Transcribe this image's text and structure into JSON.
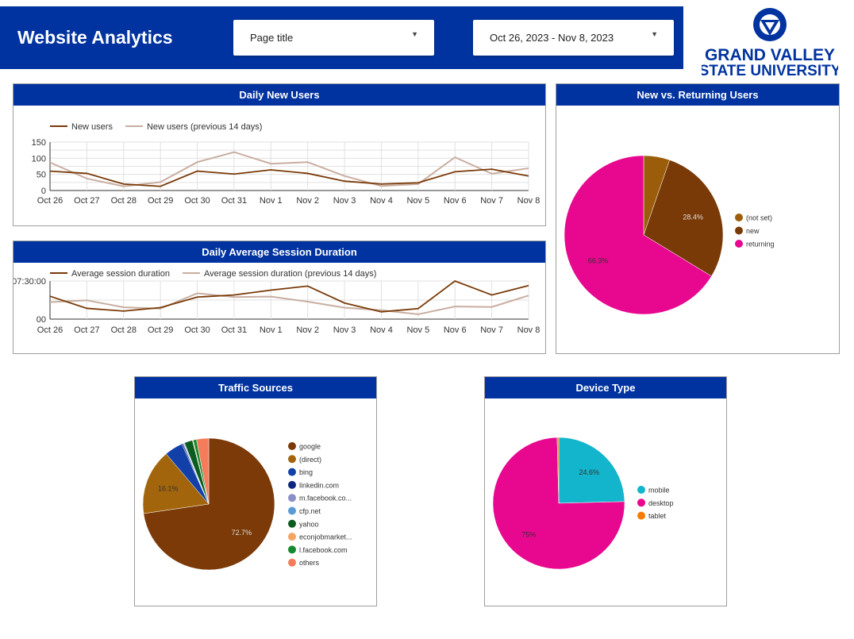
{
  "header": {
    "title": "Website Analytics",
    "filter_dimension": "Page title",
    "date_range": "Oct 26, 2023 - Nov 8, 2023",
    "logo_text": [
      "GRAND VALLEY",
      "STATE UNIVERSITY"
    ]
  },
  "colors": {
    "brand": "#0033a0",
    "current": "#7a3a08",
    "previous": "#c8aea0"
  },
  "panels": {
    "new_users": "Daily New Users",
    "session": "Daily Average Session Duration",
    "nvr": "New vs. Returning Users",
    "traffic": "Traffic Sources",
    "device": "Device Type"
  },
  "chart_data": [
    {
      "type": "line",
      "categories": [
        "Oct 26",
        "Oct 27",
        "Oct 28",
        "Oct 29",
        "Oct 30",
        "Oct 31",
        "Nov 1",
        "Nov 2",
        "Nov 3",
        "Nov 4",
        "Nov 5",
        "Nov 6",
        "Nov 7",
        "Nov 8"
      ],
      "yticks": [
        "0",
        "50",
        "100",
        "150"
      ],
      "ylim": [
        0,
        150
      ],
      "grid": true,
      "legend": "top-left",
      "series": [
        {
          "name": "New users",
          "values": [
            60,
            53,
            20,
            13,
            60,
            51,
            64,
            53,
            29,
            20,
            24,
            58,
            66,
            45
          ]
        },
        {
          "name": "New users (previous 14 days)",
          "values": [
            87,
            37,
            13,
            26,
            88,
            119,
            83,
            88,
            45,
            14,
            20,
            103,
            52,
            69
          ]
        }
      ]
    },
    {
      "type": "line",
      "categories": [
        "Oct 26",
        "Oct 27",
        "Oct 28",
        "Oct 29",
        "Oct 30",
        "Oct 31",
        "Nov 1",
        "Nov 2",
        "Nov 3",
        "Nov 4",
        "Nov 5",
        "Nov 6",
        "Nov 7",
        "Nov 8"
      ],
      "yticks": [
        "00",
        "07:30:00"
      ],
      "ylim": [
        "00:00:00",
        "07:30:00"
      ],
      "grid": true,
      "legend": "top-left",
      "series": [
        {
          "name": "Average session duration",
          "values": [
            "04:30:00",
            "02:07:00",
            "01:35:00",
            "02:16:00",
            "04:20:00",
            "04:45:00",
            "05:42:00",
            "06:30:00",
            "03:10:00",
            "01:26:00",
            "02:04:00",
            "07:30:00",
            "04:45:00",
            "06:36:00"
          ]
        },
        {
          "name": "Average session duration (previous 14 days)",
          "values": [
            "03:20:00",
            "03:42:00",
            "02:20:00",
            "02:04:00",
            "05:05:00",
            "04:20:00",
            "04:26:00",
            "03:26:00",
            "02:15:00",
            "01:45:00",
            "00:57:00",
            "02:29:00",
            "02:23:00",
            "04:38:00"
          ]
        }
      ]
    },
    {
      "type": "pie",
      "legend": "right",
      "slices": [
        {
          "name": "(not set)",
          "value": 5.3,
          "color": "#9c5d0b"
        },
        {
          "name": "new",
          "value": 28.4,
          "label": "28.4%",
          "color": "#7a3a08"
        },
        {
          "name": "returning",
          "value": 66.3,
          "label": "66.3%",
          "color": "#e8078f"
        }
      ]
    },
    {
      "type": "pie",
      "legend": "right",
      "slices": [
        {
          "name": "google",
          "value": 72.7,
          "label": "72.7%",
          "color": "#7b3a07"
        },
        {
          "name": "(direct)",
          "value": 16.1,
          "label": "16.1%",
          "color": "#a3650b"
        },
        {
          "name": "bing",
          "value": 4.5,
          "color": "#1340a8"
        },
        {
          "name": "linkedin.com",
          "value": 0.3,
          "color": "#0d2680"
        },
        {
          "name": "m.facebook.co...",
          "value": 0.2,
          "color": "#8a8fc8"
        },
        {
          "name": "cfp.net",
          "value": 0.2,
          "color": "#5b9bd5"
        },
        {
          "name": "yahoo",
          "value": 2.0,
          "color": "#0b5c1f"
        },
        {
          "name": "econjobmarket...",
          "value": 0.2,
          "color": "#f4a460"
        },
        {
          "name": "l.facebook.com",
          "value": 0.8,
          "color": "#138a2e"
        },
        {
          "name": "others",
          "value": 3.0,
          "color": "#f47c5a"
        }
      ]
    },
    {
      "type": "pie",
      "legend": "right",
      "slices": [
        {
          "name": "mobile",
          "value": 24.6,
          "label": "24.6%",
          "color": "#12b5cb"
        },
        {
          "name": "desktop",
          "value": 75,
          "label": "75%",
          "color": "#e8078f"
        },
        {
          "name": "tablet",
          "value": 0.4,
          "color": "#f57c00"
        }
      ]
    }
  ]
}
